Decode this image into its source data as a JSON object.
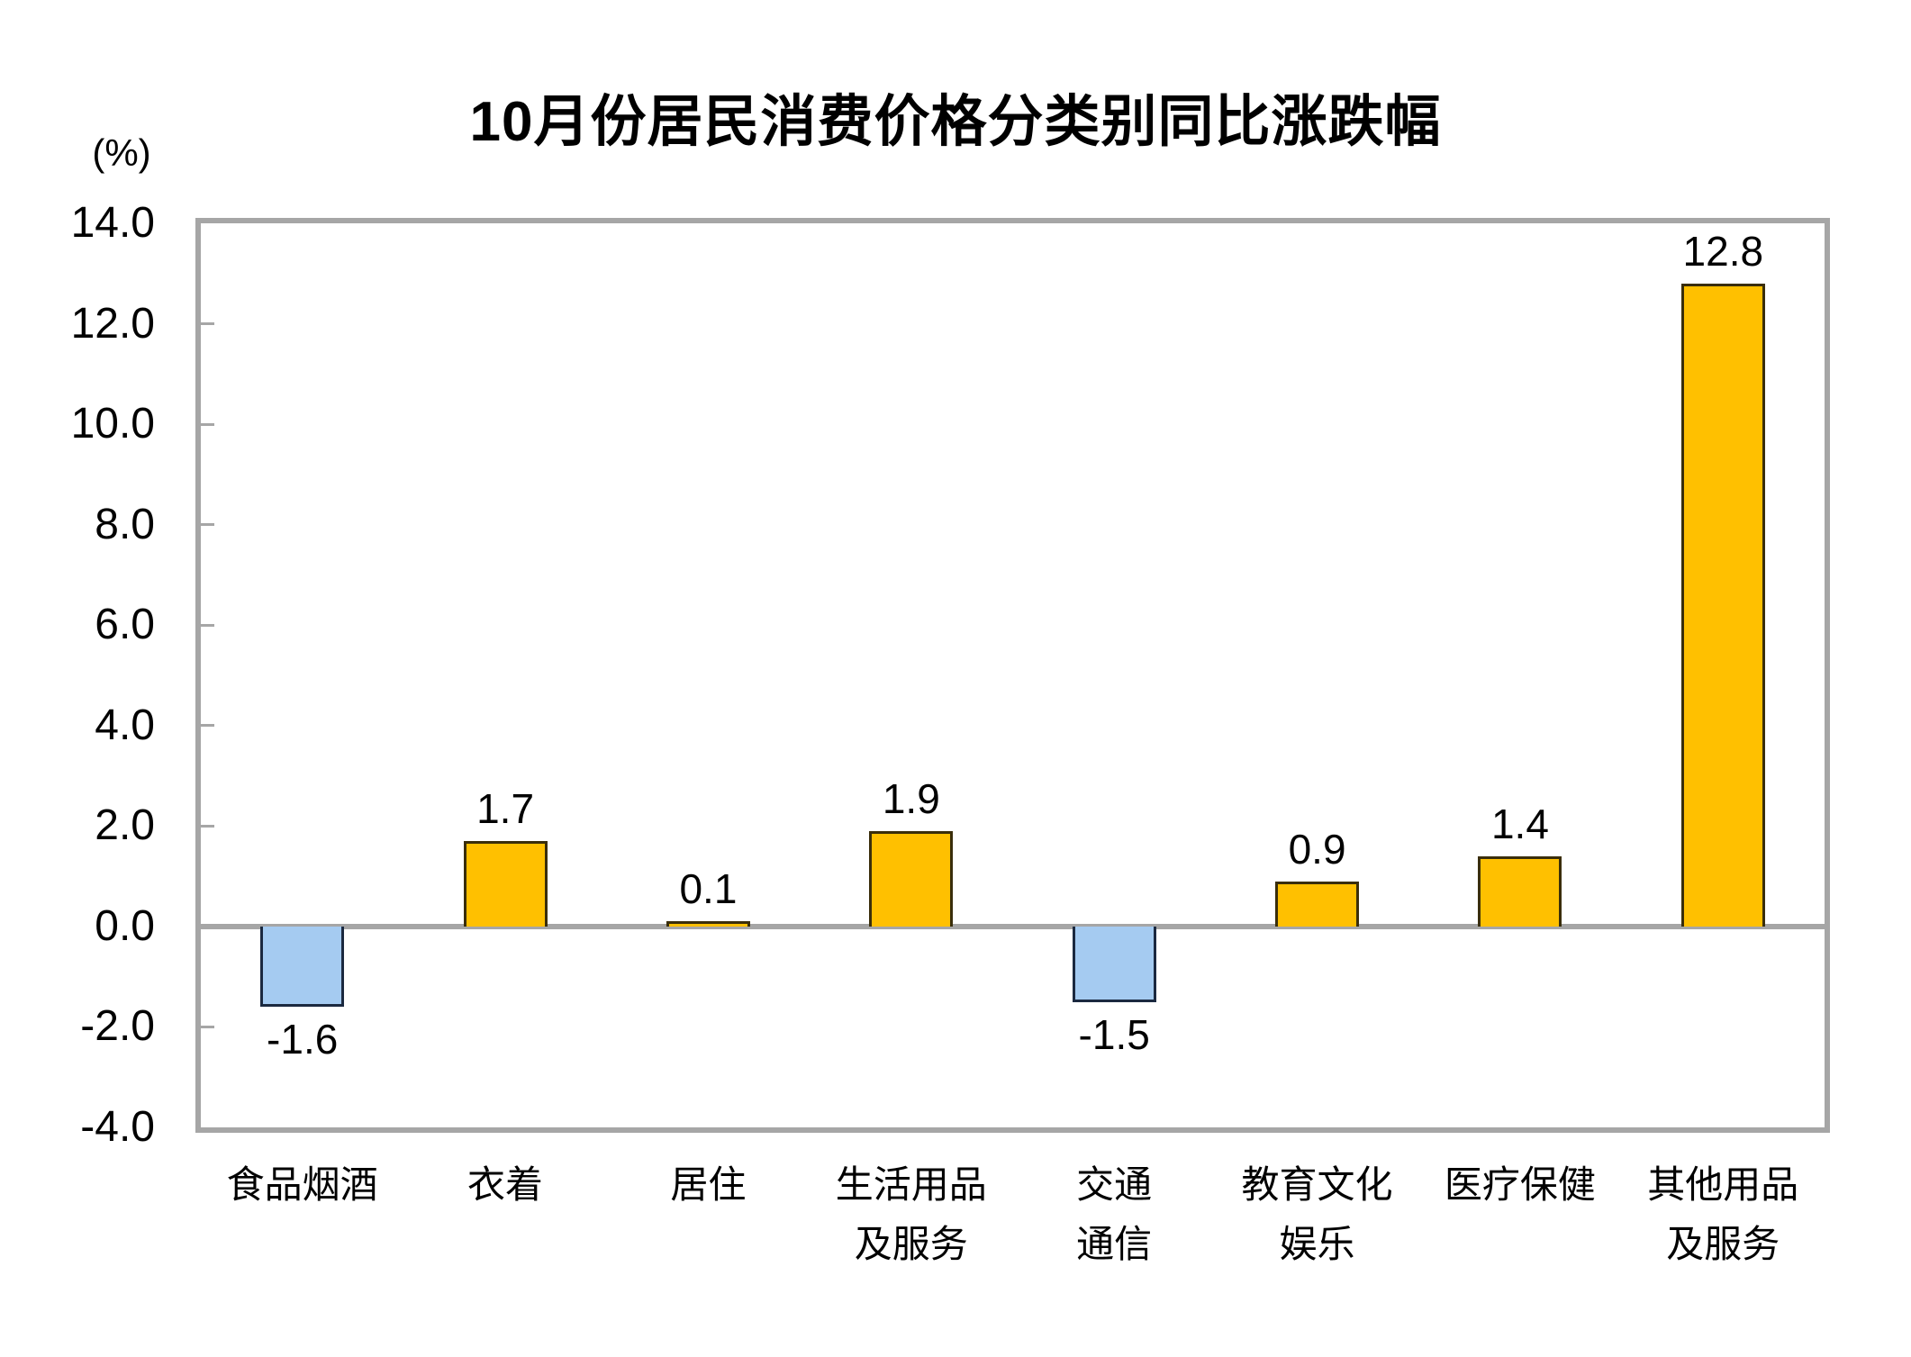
{
  "chart_data": {
    "type": "bar",
    "title": "10月份居民消费价格分类别同比涨跌幅",
    "y_unit_label": "(%)",
    "xlabel": "",
    "ylabel": "",
    "categories": [
      "食品烟酒",
      "衣着",
      "居住",
      "生活用品\n及服务",
      "交通\n通信",
      "教育文化\n娱乐",
      "医疗保健",
      "其他用品\n及服务"
    ],
    "values": [
      -1.6,
      1.7,
      0.1,
      1.9,
      -1.5,
      0.9,
      1.4,
      12.8
    ],
    "value_labels": [
      "-1.6",
      "1.7",
      "0.1",
      "1.9",
      "-1.5",
      "0.9",
      "1.4",
      "12.8"
    ],
    "y_tick_values": [
      14,
      12,
      10,
      8,
      6,
      4,
      2,
      0,
      -2,
      -4
    ],
    "y_tick_labels": [
      "14.0",
      "12.0",
      "10.0",
      "8.0",
      "6.0",
      "4.0",
      "2.0",
      "0.0",
      "-2.0",
      "-4.0"
    ],
    "ylim": [
      -4,
      14
    ],
    "grid": "off",
    "legend": "none",
    "colors": {
      "positive_bar_fill": "#FFC000",
      "positive_bar_border": "#3A2E0B",
      "negative_bar_fill": "#A5CBF1",
      "negative_bar_border": "#1B2940",
      "axis_frame": "#A6A6A6",
      "zero_line": "#A6A6A6",
      "text": "#000000",
      "background": "#FFFFFF"
    }
  }
}
